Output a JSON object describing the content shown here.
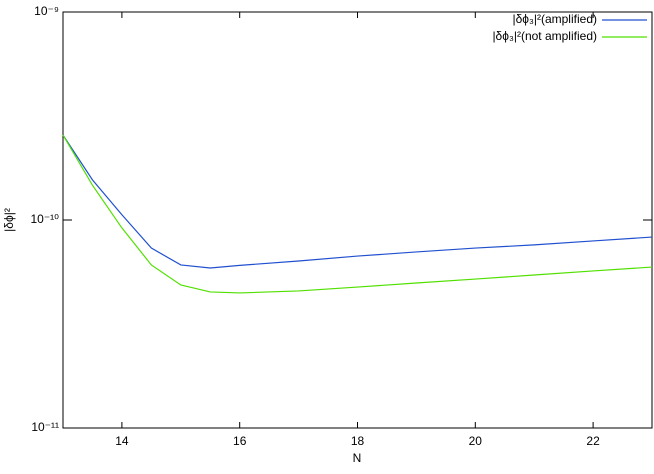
{
  "chart_data": {
    "type": "line",
    "xlabel": "N",
    "ylabel": "|δϕ|²",
    "x": [
      13,
      13.5,
      14,
      14.5,
      15,
      15.5,
      16,
      17,
      18,
      19,
      20,
      21,
      22,
      23
    ],
    "series": [
      {
        "name": "|δϕ₃|²(amplified)",
        "color": "#2050d0",
        "values": [
          2.56e-10,
          1.56e-10,
          1.06e-10,
          7.33e-11,
          6.08e-11,
          5.88e-11,
          6.05e-11,
          6.35e-11,
          6.71e-11,
          7.02e-11,
          7.33e-11,
          7.59e-11,
          7.93e-11,
          8.28e-11
        ]
      },
      {
        "name": "|δϕ₃|²(not amplified)",
        "color": "#50e000",
        "values": [
          2.56e-10,
          1.47e-10,
          9.16e-11,
          6.08e-11,
          4.87e-11,
          4.51e-11,
          4.46e-11,
          4.56e-11,
          4.76e-11,
          4.98e-11,
          5.2e-11,
          5.44e-11,
          5.69e-11,
          5.94e-11
        ]
      }
    ],
    "xlim": [
      13,
      23
    ],
    "xticks": [
      14,
      16,
      18,
      20,
      22
    ],
    "ylim": [
      1e-11,
      1e-09
    ],
    "ylog": true,
    "yticks": [
      {
        "value": 1e-11,
        "label": "10⁻¹¹"
      },
      {
        "value": 1e-10,
        "label": "10⁻¹⁰"
      },
      {
        "value": 1e-09,
        "label": "10⁻⁹"
      }
    ],
    "legend": "top-right"
  }
}
